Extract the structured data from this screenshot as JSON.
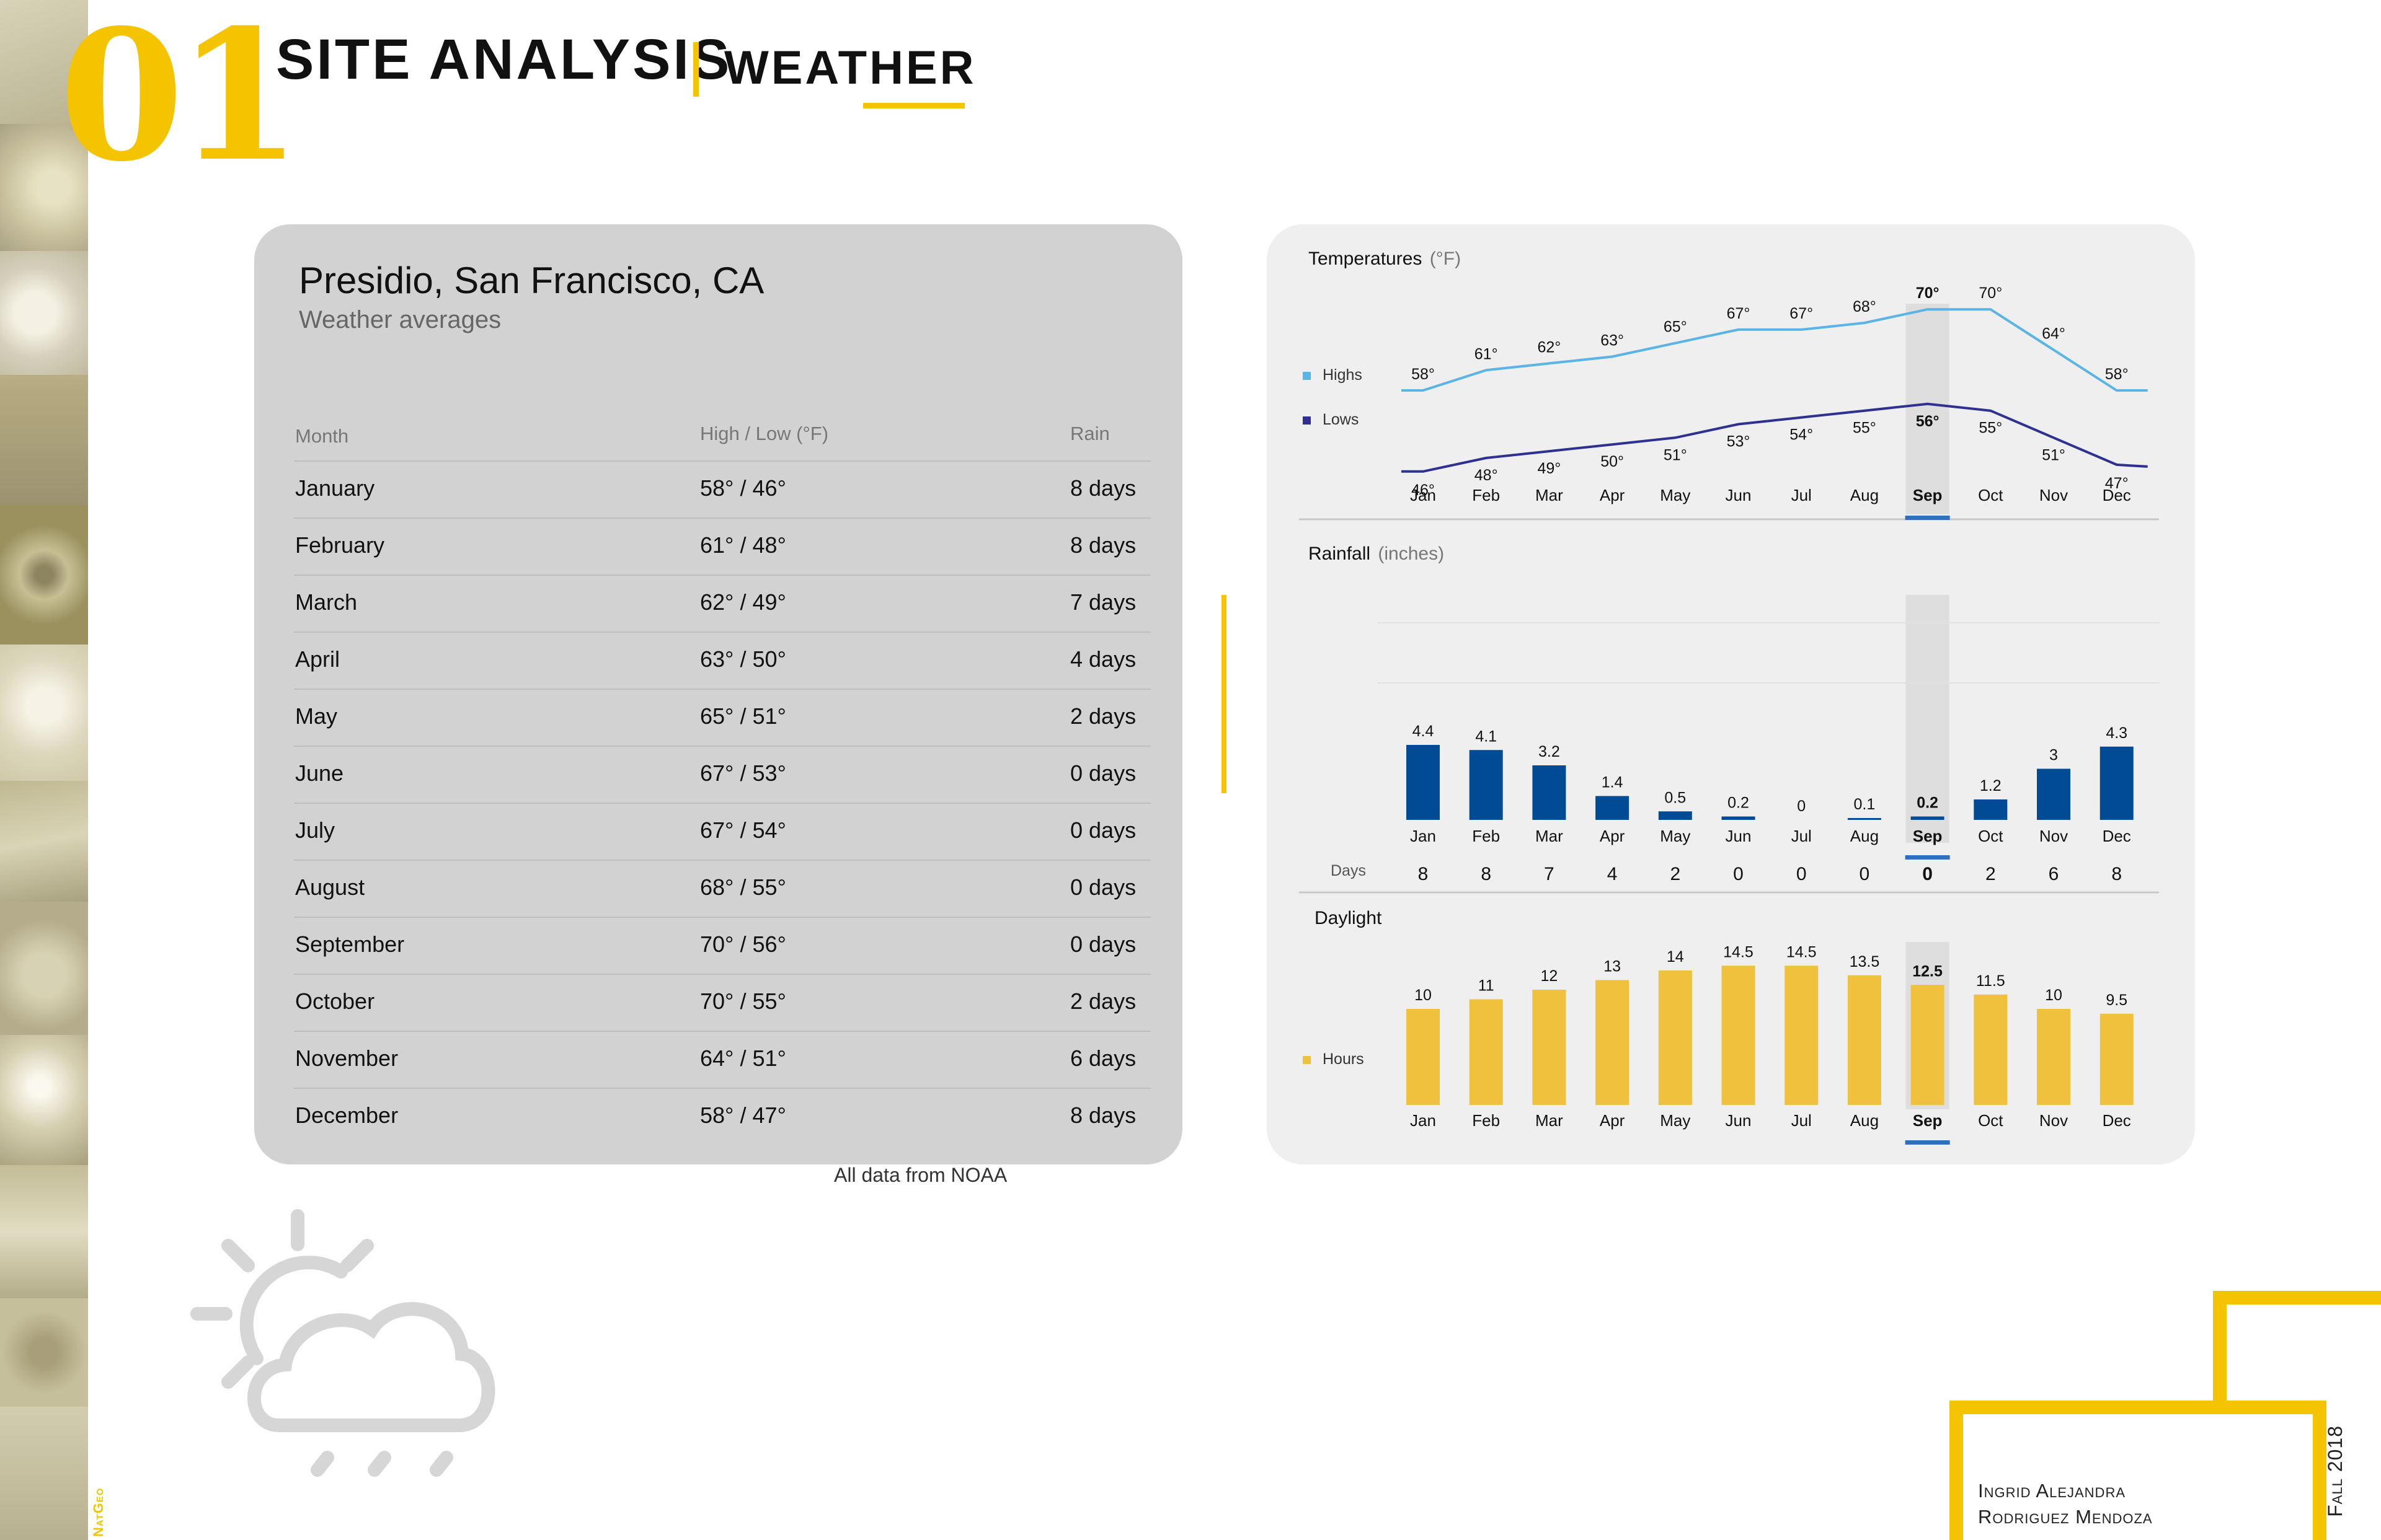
{
  "header": {
    "number": "01",
    "title": "SITE ANALYSIS",
    "subtitle": "WEATHER",
    "side_label": "NatGeo"
  },
  "table": {
    "location": "Presidio, San Francisco, CA",
    "subtitle": "Weather averages",
    "columns": [
      "Month",
      "High / Low (°F)",
      "Rain"
    ],
    "rows": [
      {
        "month": "January",
        "hilo": "58° / 46°",
        "rain": "8 days"
      },
      {
        "month": "February",
        "hilo": "61° / 48°",
        "rain": "8 days"
      },
      {
        "month": "March",
        "hilo": "62° / 49°",
        "rain": "7 days"
      },
      {
        "month": "April",
        "hilo": "63° / 50°",
        "rain": "4 days"
      },
      {
        "month": "May",
        "hilo": "65° / 51°",
        "rain": "2 days"
      },
      {
        "month": "June",
        "hilo": "67° / 53°",
        "rain": "0 days"
      },
      {
        "month": "July",
        "hilo": "67° / 54°",
        "rain": "0 days"
      },
      {
        "month": "August",
        "hilo": "68° / 55°",
        "rain": "0 days"
      },
      {
        "month": "September",
        "hilo": "70° / 56°",
        "rain": "0 days"
      },
      {
        "month": "October",
        "hilo": "70° / 55°",
        "rain": "2 days"
      },
      {
        "month": "November",
        "hilo": "64° / 51°",
        "rain": "6 days"
      },
      {
        "month": "December",
        "hilo": "58° / 47°",
        "rain": "8 days"
      }
    ],
    "source": "All data from NOAA"
  },
  "chart_data": [
    {
      "type": "line",
      "title": "Temperatures",
      "unit": "(°F)",
      "categories": [
        "Jan",
        "Feb",
        "Mar",
        "Apr",
        "May",
        "Jun",
        "Jul",
        "Aug",
        "Sep",
        "Oct",
        "Nov",
        "Dec"
      ],
      "highlight": "Sep",
      "series": [
        {
          "name": "Highs",
          "color": "#5ab4e5",
          "values": [
            58,
            61,
            62,
            63,
            65,
            67,
            67,
            68,
            70,
            70,
            64,
            58
          ]
        },
        {
          "name": "Lows",
          "color": "#2e3192",
          "values": [
            46,
            48,
            49,
            50,
            51,
            53,
            54,
            55,
            56,
            55,
            51,
            47
          ]
        }
      ],
      "label_suffix": "°"
    },
    {
      "type": "bar",
      "title": "Rainfall",
      "unit": "(inches)",
      "categories": [
        "Jan",
        "Feb",
        "Mar",
        "Apr",
        "May",
        "Jun",
        "Jul",
        "Aug",
        "Sep",
        "Oct",
        "Nov",
        "Dec"
      ],
      "highlight": "Sep",
      "color": "#004b93",
      "values": [
        4.4,
        4.1,
        3.2,
        1.4,
        0.5,
        0.2,
        0,
        0.1,
        0.2,
        1.2,
        3,
        4.3
      ],
      "days_label": "Days",
      "days": [
        8,
        8,
        7,
        4,
        2,
        0,
        0,
        0,
        0,
        2,
        6,
        8
      ]
    },
    {
      "type": "bar",
      "title": "Daylight",
      "categories": [
        "Jan",
        "Feb",
        "Mar",
        "Apr",
        "May",
        "Jun",
        "Jul",
        "Aug",
        "Sep",
        "Oct",
        "Nov",
        "Dec"
      ],
      "highlight": "Sep",
      "series_name": "Hours",
      "color": "#f0c13d",
      "values": [
        10,
        11,
        12,
        13,
        14,
        14.5,
        14.5,
        13.5,
        12.5,
        11.5,
        10,
        9.5
      ]
    }
  ],
  "footer": {
    "author_line1": "Ingrid Alejandra",
    "author_line2": "Rodriguez Mendoza",
    "term": "Fall 2018"
  },
  "colors": {
    "accent": "#f5c400",
    "card": "#d2d2d2",
    "chart_bg": "#efefef",
    "select": "#2f6fc0"
  }
}
